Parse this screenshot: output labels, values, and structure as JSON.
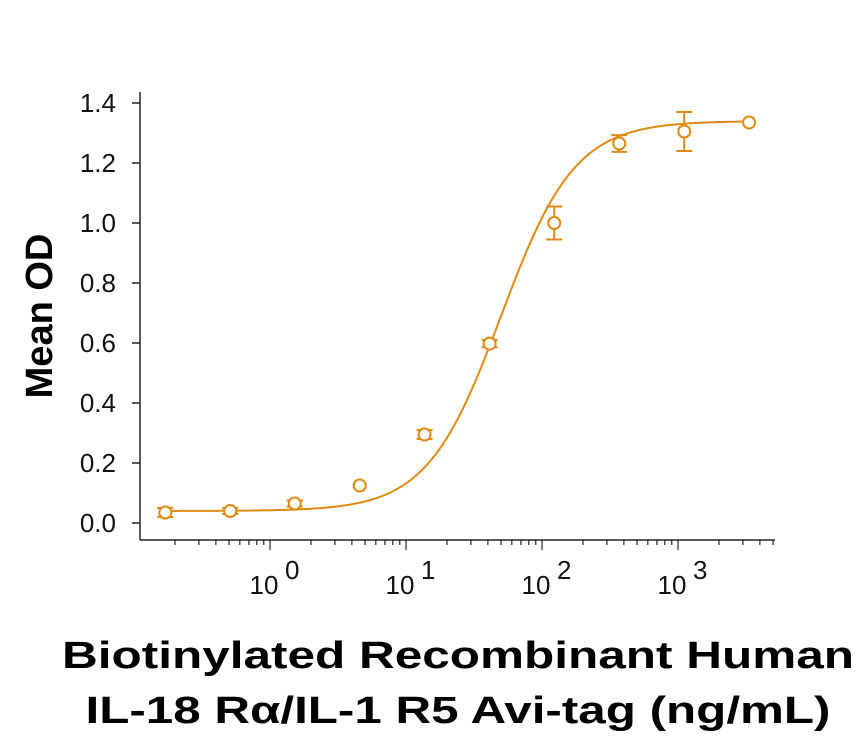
{
  "chart_data": {
    "type": "scatter",
    "title": "",
    "xlabel_lines": [
      "Biotinylated Recombinant Human",
      "IL-18 Rα/IL-1 R5 Avi-tag (ng/mL)"
    ],
    "ylabel": "Mean OD",
    "xscale": "log",
    "xlim": [
      0.12,
      5000
    ],
    "ylim": [
      0.0,
      1.4
    ],
    "yticks": [
      "0.0",
      "0.2",
      "0.4",
      "0.6",
      "0.8",
      "1.0",
      "1.2",
      "1.4"
    ],
    "xticks": [
      {
        "base": "10",
        "exp": "0",
        "value": 1
      },
      {
        "base": "10",
        "exp": "1",
        "value": 10
      },
      {
        "base": "10",
        "exp": "2",
        "value": 100
      },
      {
        "base": "10",
        "exp": "3",
        "value": 1000
      }
    ],
    "grid": false,
    "color": "#E08A14",
    "points": [
      {
        "x": 0.17,
        "y": 0.035,
        "err": 0.015
      },
      {
        "x": 0.51,
        "y": 0.04,
        "err": 0.01
      },
      {
        "x": 1.52,
        "y": 0.065,
        "err": 0.01
      },
      {
        "x": 4.57,
        "y": 0.125,
        "err": 0.0
      },
      {
        "x": 13.7,
        "y": 0.295,
        "err": 0.015
      },
      {
        "x": 41.2,
        "y": 0.598,
        "err": 0.012
      },
      {
        "x": 123,
        "y": 1.0,
        "err": 0.055
      },
      {
        "x": 370,
        "y": 1.265,
        "err": 0.028
      },
      {
        "x": 1111,
        "y": 1.305,
        "err": 0.065
      },
      {
        "x": 3333,
        "y": 1.335,
        "err": 0.0
      }
    ],
    "fit": {
      "model": "4PL",
      "bottom": 0.04,
      "top": 1.34,
      "ec50": 50,
      "hill": 1.6
    }
  }
}
